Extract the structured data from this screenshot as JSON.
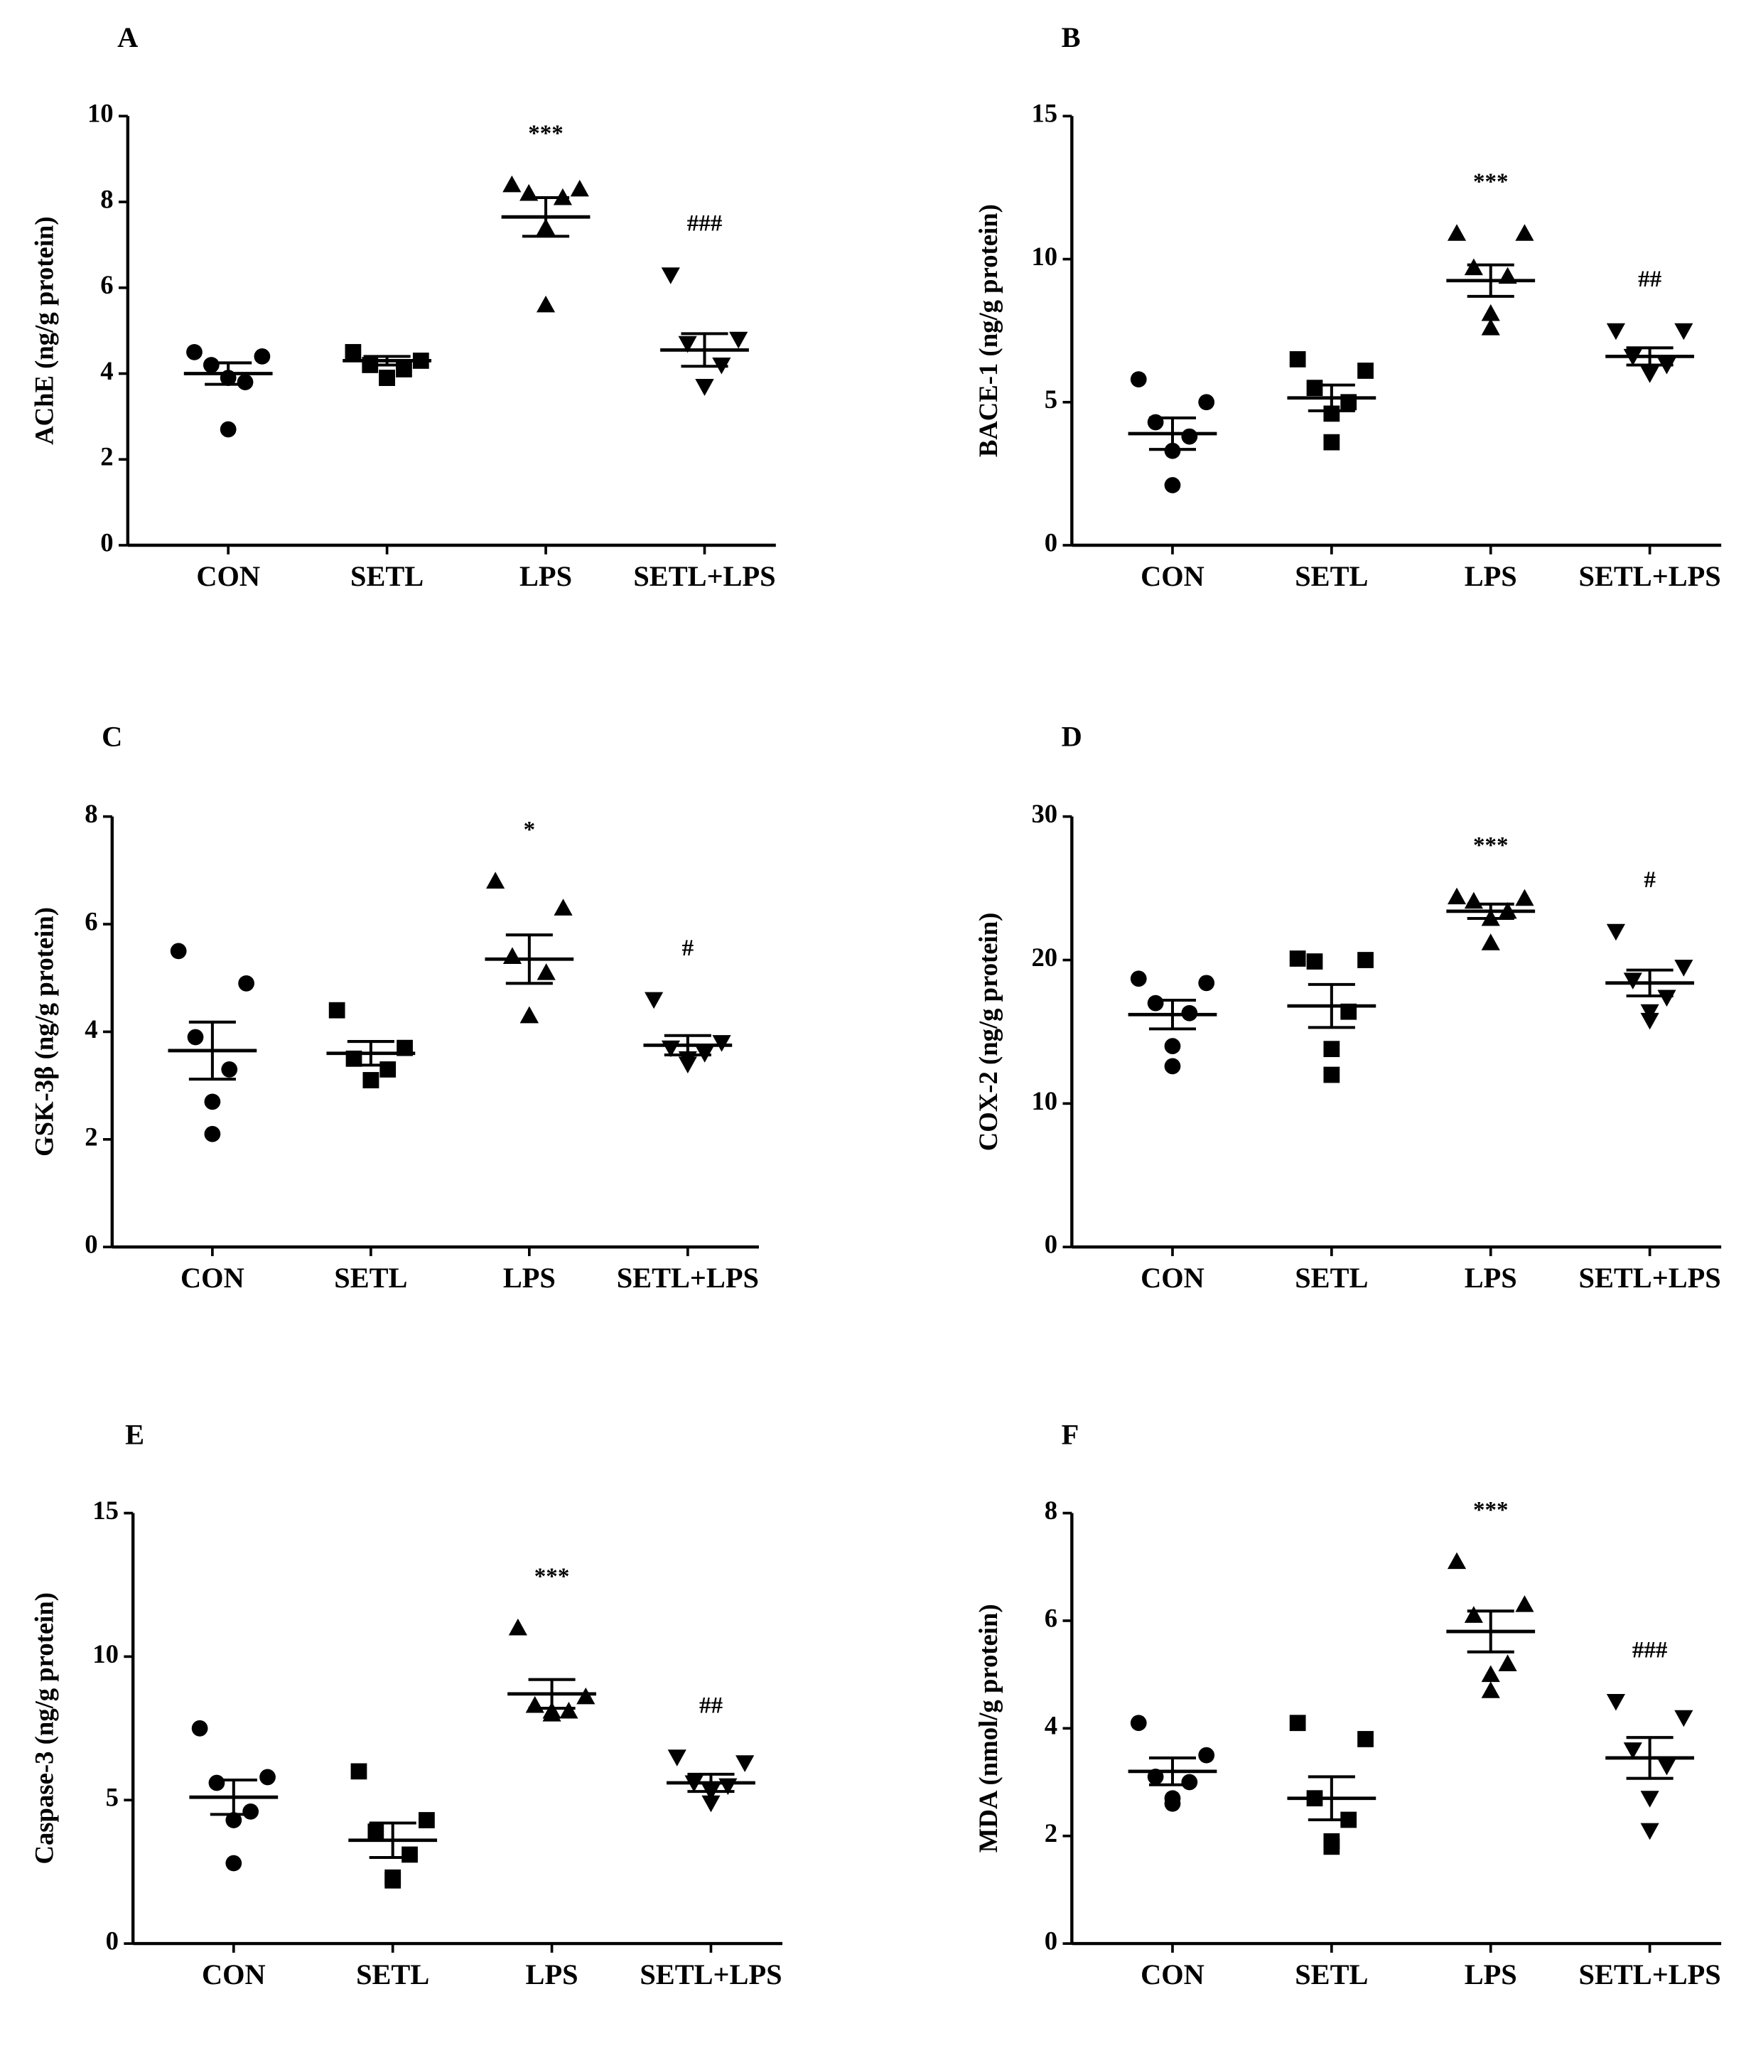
{
  "figure": {
    "panels": [
      "A",
      "B",
      "C",
      "D",
      "E",
      "F"
    ]
  },
  "chart_data": [
    {
      "panel": "A",
      "type": "scatter",
      "ylabel": "AChE  (ng/g protein)",
      "ylim": [
        0,
        10
      ],
      "yticks": [
        0,
        2,
        4,
        6,
        8,
        10
      ],
      "categories": [
        "CON",
        "SETL",
        "LPS",
        "SETL+LPS"
      ],
      "markers": [
        "circle",
        "square",
        "triangle-up",
        "triangle-down"
      ],
      "points": [
        [
          4.5,
          4.4,
          4.2,
          3.8,
          3.9,
          2.7
        ],
        [
          4.5,
          4.3,
          4.2,
          4.1,
          3.9,
          3.9
        ],
        [
          8.4,
          8.3,
          8.2,
          8.1,
          7.4,
          5.6
        ],
        [
          6.3,
          4.8,
          4.7,
          4.2,
          3.7,
          3.7
        ]
      ],
      "means": [
        4.0,
        4.3,
        7.65,
        4.55
      ],
      "sem": [
        0.25,
        0.1,
        0.45,
        0.38
      ],
      "annotations": [
        "",
        "",
        "***",
        "###"
      ],
      "grid": false
    },
    {
      "panel": "B",
      "type": "scatter",
      "ylabel": "BACE-1  (ng/g protein)",
      "ylim": [
        0,
        15
      ],
      "yticks": [
        0,
        5,
        10,
        15
      ],
      "categories": [
        "CON",
        "SETL",
        "LPS",
        "SETL+LPS"
      ],
      "markers": [
        "circle",
        "square",
        "triangle-up",
        "triangle-down"
      ],
      "points": [
        [
          5.8,
          5.0,
          4.3,
          3.8,
          3.3,
          2.1
        ],
        [
          6.5,
          6.1,
          5.5,
          5.0,
          4.6,
          3.6
        ],
        [
          10.9,
          10.9,
          9.7,
          9.4,
          8.1,
          7.6
        ],
        [
          7.5,
          7.5,
          6.6,
          6.3,
          6.0,
          6.0
        ]
      ],
      "means": [
        3.9,
        5.15,
        9.25,
        6.6
      ],
      "sem": [
        0.55,
        0.45,
        0.55,
        0.3
      ],
      "annotations": [
        "",
        "",
        "***",
        "##"
      ],
      "grid": false
    },
    {
      "panel": "C",
      "type": "scatter",
      "ylabel": "GSK-3β (ng/g protein)",
      "ylim": [
        0,
        8
      ],
      "yticks": [
        0,
        2,
        4,
        6,
        8
      ],
      "categories": [
        "CON",
        "SETL",
        "LPS",
        "SETL+LPS"
      ],
      "markers": [
        "circle",
        "square",
        "triangle-up",
        "triangle-down"
      ],
      "points": [
        [
          5.5,
          4.9,
          3.9,
          3.3,
          2.7,
          2.1
        ],
        [
          4.4,
          3.7,
          3.5,
          3.3,
          3.1,
          3.1
        ],
        [
          6.8,
          6.3,
          5.4,
          5.1,
          4.3,
          4.3
        ],
        [
          4.6,
          3.8,
          3.7,
          3.6,
          3.5,
          3.4
        ]
      ],
      "means": [
        3.65,
        3.6,
        5.35,
        3.75
      ],
      "sem": [
        0.53,
        0.22,
        0.45,
        0.18
      ],
      "annotations": [
        "",
        "",
        "*",
        "#"
      ],
      "grid": false
    },
    {
      "panel": "D",
      "type": "scatter",
      "ylabel": "COX-2 (ng/g protein)",
      "ylim": [
        0,
        30
      ],
      "yticks": [
        0,
        10,
        20,
        30
      ],
      "categories": [
        "CON",
        "SETL",
        "LPS",
        "SETL+LPS"
      ],
      "markers": [
        "circle",
        "square",
        "triangle-up",
        "triangle-down"
      ],
      "points": [
        [
          18.7,
          18.4,
          17.0,
          16.3,
          14.0,
          12.6
        ],
        [
          20.1,
          20.0,
          19.9,
          16.4,
          13.8,
          12.0
        ],
        [
          24.4,
          24.3,
          24.1,
          23.4,
          22.9,
          21.2
        ],
        [
          22.0,
          19.5,
          18.6,
          17.4,
          16.4,
          15.8
        ]
      ],
      "means": [
        16.2,
        16.8,
        23.4,
        18.4
      ],
      "sem": [
        1.0,
        1.5,
        0.5,
        0.9
      ],
      "annotations": [
        "",
        "",
        "***",
        "#"
      ],
      "grid": false
    },
    {
      "panel": "E",
      "type": "scatter",
      "ylabel": "Caspase-3 (ng/g protein)",
      "ylim": [
        0,
        15
      ],
      "yticks": [
        0,
        5,
        10,
        15
      ],
      "categories": [
        "CON",
        "SETL",
        "LPS",
        "SETL+LPS"
      ],
      "markers": [
        "circle",
        "square",
        "triangle-up",
        "triangle-down"
      ],
      "points": [
        [
          7.5,
          5.8,
          5.6,
          4.6,
          4.3,
          2.8
        ],
        [
          6.0,
          4.3,
          3.9,
          3.1,
          2.3,
          2.2
        ],
        [
          11.0,
          8.6,
          8.3,
          8.1,
          8.1,
          8.0
        ],
        [
          6.5,
          6.3,
          5.6,
          5.5,
          5.3,
          4.9
        ]
      ],
      "means": [
        5.1,
        3.6,
        8.7,
        5.6
      ],
      "sem": [
        0.6,
        0.6,
        0.5,
        0.3
      ],
      "annotations": [
        "",
        "",
        "***",
        "##"
      ],
      "grid": false
    },
    {
      "panel": "F",
      "type": "scatter",
      "ylabel": "MDA (nmol/g protein)",
      "ylim": [
        0,
        8
      ],
      "yticks": [
        0,
        2,
        4,
        6,
        8
      ],
      "categories": [
        "CON",
        "SETL",
        "LPS",
        "SETL+LPS"
      ],
      "markers": [
        "circle",
        "square",
        "triangle-up",
        "triangle-down"
      ],
      "points": [
        [
          4.1,
          3.5,
          3.1,
          3.0,
          2.7,
          2.6
        ],
        [
          4.1,
          3.8,
          2.7,
          2.3,
          1.9,
          1.8
        ],
        [
          7.1,
          6.3,
          6.1,
          5.2,
          5.0,
          4.7
        ],
        [
          4.5,
          4.2,
          3.6,
          3.3,
          2.7,
          2.1
        ]
      ],
      "means": [
        3.2,
        2.7,
        5.8,
        3.45
      ],
      "sem": [
        0.25,
        0.4,
        0.38,
        0.38
      ],
      "annotations": [
        "",
        "",
        "***",
        "###"
      ],
      "grid": false
    }
  ]
}
